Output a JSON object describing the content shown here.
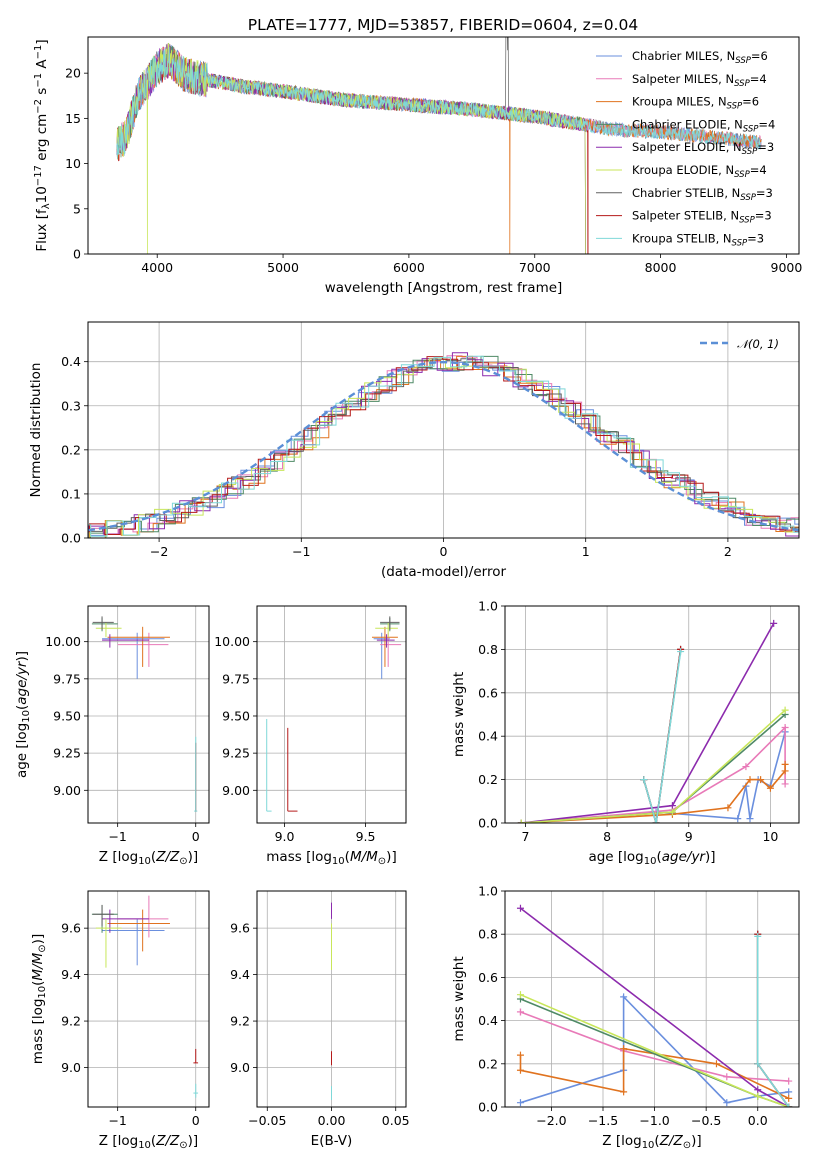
{
  "figure": {
    "title": "PLATE=1777, MJD=53857, FIBERID=0604, z=0.04"
  },
  "colors": {
    "Chabrier MILES": "#6a8fde",
    "Salpeter MILES": "#e87ab8",
    "Kroupa MILES": "#e0731f",
    "Chabrier ELODIE": "#4f8a66",
    "Salpeter ELODIE": "#8c2bad",
    "Kroupa ELODIE": "#c8e65a",
    "Chabrier STELIB": "#606060",
    "Salpeter STELIB": "#b51a1a",
    "Kroupa STELIB": "#7fd8d8"
  },
  "chart_data": [
    {
      "id": "spectrum",
      "type": "line",
      "xlabel": "wavelength [Angstrom, rest frame]",
      "ylabel": "Flux [f_λ 10^-17 erg cm^-2 s^-1 A^-1]",
      "xlim": [
        3450,
        9100
      ],
      "ylim": [
        0,
        24
      ],
      "xticks": [
        4000,
        5000,
        6000,
        7000,
        8000,
        9000
      ],
      "yticks": [
        0,
        5,
        10,
        15,
        20
      ],
      "legend_position": "top-right",
      "series": [
        {
          "name": "Chabrier MILES",
          "nssp": "6"
        },
        {
          "name": "Salpeter MILES",
          "nssp": "4"
        },
        {
          "name": "Kroupa MILES",
          "nssp": "6"
        },
        {
          "name": "Chabrier ELODIE",
          "nssp": "4"
        },
        {
          "name": "Salpeter ELODIE",
          "nssp": "3"
        },
        {
          "name": "Kroupa ELODIE",
          "nssp": "4"
        },
        {
          "name": "Chabrier STELIB",
          "nssp": "3"
        },
        {
          "name": "Salpeter STELIB",
          "nssp": "3"
        },
        {
          "name": "Kroupa STELIB",
          "nssp": "3"
        }
      ],
      "envelope": {
        "x": [
          3680,
          3750,
          3850,
          3950,
          4000,
          4100,
          4200,
          4300,
          4500,
          4700,
          5000,
          5500,
          6000,
          6500,
          7000,
          7400,
          7600,
          8000,
          8500,
          8800
        ],
        "y": [
          12.0,
          13.0,
          17.5,
          19.5,
          20.5,
          21.5,
          20.0,
          19.5,
          19.0,
          18.5,
          18.0,
          17.0,
          16.5,
          16.0,
          15.2,
          14.3,
          13.8,
          13.5,
          12.8,
          12.3
        ]
      }
    },
    {
      "id": "residuals",
      "type": "line",
      "xlabel": "(data-model)/error",
      "ylabel": "Normed distribution",
      "xlim": [
        -2.5,
        2.5
      ],
      "ylim": [
        0,
        0.49
      ],
      "xticks": [
        -2,
        -1,
        0,
        1,
        2
      ],
      "yticks": [
        0.0,
        0.1,
        0.2,
        0.3,
        0.4
      ],
      "legend": "𝒩(0, 1)",
      "legend_position": "top-right",
      "gaussian": {
        "mean": 0,
        "sigma": 1
      }
    },
    {
      "id": "age_vs_Z",
      "type": "scatter",
      "xlabel": "Z [log10(Z/Z⊙)]",
      "ylabel": "age [log10(age/yr)]",
      "xlim": [
        -1.38,
        0.17
      ],
      "ylim": [
        8.78,
        10.24
      ],
      "xticks": [
        -1,
        0
      ],
      "yticks": [
        9.0,
        9.25,
        9.5,
        9.75,
        10.0
      ],
      "points": [
        {
          "series": "Chabrier MILES",
          "x": -0.75,
          "y": 10.02,
          "xerr": [
            0.45,
            0.35
          ],
          "yerr": [
            0.27,
            0.04
          ]
        },
        {
          "series": "Salpeter MILES",
          "x": -0.6,
          "y": 9.98,
          "xerr": [
            0.4,
            0.25
          ],
          "yerr": [
            0.15,
            0.08
          ]
        },
        {
          "series": "Kroupa MILES",
          "x": -0.68,
          "y": 10.03,
          "xerr": [
            0.45,
            0.35
          ],
          "yerr": [
            0.2,
            0.07
          ]
        },
        {
          "series": "Chabrier ELODIE",
          "x": -1.2,
          "y": 10.12,
          "xerr": [
            0.13,
            0.2
          ],
          "yerr": [
            0.05,
            0.04
          ]
        },
        {
          "series": "Salpeter ELODIE",
          "x": -1.1,
          "y": 10.01,
          "xerr": [
            0.1,
            0.5
          ],
          "yerr": [
            0.05,
            0.04
          ]
        },
        {
          "series": "Kroupa ELODIE",
          "x": -1.15,
          "y": 10.09,
          "xerr": [
            0.13,
            0.2
          ],
          "yerr": [
            0.06,
            0.04
          ]
        },
        {
          "series": "Chabrier STELIB",
          "x": -1.2,
          "y": 10.13,
          "xerr": [
            0.12,
            0.15
          ],
          "yerr": [
            0.05,
            0.04
          ]
        },
        {
          "series": "Salpeter STELIB",
          "x": 0.0,
          "y": 8.86,
          "xerr": [
            0.01,
            0.01
          ],
          "yerr": [
            0.0,
            0.46
          ]
        },
        {
          "series": "Kroupa STELIB",
          "x": 0.0,
          "y": 8.86,
          "xerr": [
            0.02,
            0.02
          ],
          "yerr": [
            0.0,
            0.5
          ]
        }
      ]
    },
    {
      "id": "age_vs_mass",
      "type": "scatter",
      "xlabel": "mass [log10(M/M⊙)]",
      "ylabel": "",
      "xlim": [
        8.83,
        9.75
      ],
      "ylim": [
        8.78,
        10.24
      ],
      "xticks": [
        9.0,
        9.5
      ],
      "yticks": [
        9.0,
        9.25,
        9.5,
        9.75,
        10.0
      ],
      "points": [
        {
          "series": "Chabrier MILES",
          "x": 9.6,
          "y": 10.02,
          "xerr": [
            0.05,
            0.05
          ],
          "yerr": [
            0.27,
            0.04
          ]
        },
        {
          "series": "Salpeter MILES",
          "x": 9.64,
          "y": 9.98,
          "xerr": [
            0.05,
            0.08
          ],
          "yerr": [
            0.15,
            0.08
          ]
        },
        {
          "series": "Kroupa MILES",
          "x": 9.62,
          "y": 10.03,
          "xerr": [
            0.08,
            0.08
          ],
          "yerr": [
            0.2,
            0.07
          ]
        },
        {
          "series": "Chabrier ELODIE",
          "x": 9.65,
          "y": 10.12,
          "xerr": [
            0.06,
            0.06
          ],
          "yerr": [
            0.05,
            0.04
          ]
        },
        {
          "series": "Salpeter ELODIE",
          "x": 9.63,
          "y": 10.01,
          "xerr": [
            0.06,
            0.05
          ],
          "yerr": [
            0.05,
            0.04
          ]
        },
        {
          "series": "Kroupa ELODIE",
          "x": 9.64,
          "y": 10.09,
          "xerr": [
            0.08,
            0.06
          ],
          "yerr": [
            0.06,
            0.04
          ]
        },
        {
          "series": "Chabrier STELIB",
          "x": 9.65,
          "y": 10.13,
          "xerr": [
            0.06,
            0.06
          ],
          "yerr": [
            0.05,
            0.04
          ]
        },
        {
          "series": "Salpeter STELIB",
          "x": 9.02,
          "y": 8.86,
          "xerr": [
            0.0,
            0.06
          ],
          "yerr": [
            0.0,
            0.56
          ]
        },
        {
          "series": "Kroupa STELIB",
          "x": 8.89,
          "y": 8.86,
          "xerr": [
            0.0,
            0.03
          ],
          "yerr": [
            0.0,
            0.62
          ]
        }
      ]
    },
    {
      "id": "weight_vs_age",
      "type": "line",
      "xlabel": "age [log10(age/yr)]",
      "ylabel": "mass weight",
      "xlim": [
        6.75,
        10.35
      ],
      "ylim": [
        0,
        1
      ],
      "xticks": [
        7,
        8,
        9,
        10
      ],
      "yticks": [
        0.0,
        0.2,
        0.4,
        0.6,
        0.8,
        1.0
      ],
      "series": [
        {
          "series": "Chabrier MILES",
          "x": [
            6.95,
            8.6,
            9.6,
            9.7,
            9.75,
            9.85,
            10.0,
            10.18
          ],
          "y": [
            0.0,
            0.05,
            0.02,
            0.17,
            0.02,
            0.2,
            0.17,
            0.42
          ]
        },
        {
          "series": "Salpeter MILES",
          "x": [
            6.95,
            8.8,
            9.7,
            10.18,
            10.18
          ],
          "y": [
            0.0,
            0.06,
            0.26,
            0.44,
            0.18
          ]
        },
        {
          "series": "Kroupa MILES",
          "x": [
            6.95,
            8.8,
            9.48,
            9.75,
            9.88,
            10.0,
            10.18,
            10.18
          ],
          "y": [
            0.0,
            0.04,
            0.07,
            0.2,
            0.2,
            0.16,
            0.24,
            0.27
          ]
        },
        {
          "series": "Chabrier ELODIE",
          "x": [
            6.95,
            8.8,
            10.18
          ],
          "y": [
            0.0,
            0.05,
            0.5
          ]
        },
        {
          "series": "Salpeter ELODIE",
          "x": [
            6.95,
            8.8,
            10.04
          ],
          "y": [
            0.0,
            0.08,
            0.92
          ]
        },
        {
          "series": "Kroupa ELODIE",
          "x": [
            6.95,
            8.8,
            10.18
          ],
          "y": [
            0.0,
            0.05,
            0.52
          ]
        },
        {
          "series": "Chabrier STELIB",
          "x": [
            8.45,
            8.6,
            8.9
          ],
          "y": [
            0.2,
            0.0,
            0.8
          ]
        },
        {
          "series": "Salpeter STELIB",
          "x": [
            8.45,
            8.6,
            8.9
          ],
          "y": [
            0.2,
            0.0,
            0.8
          ]
        },
        {
          "series": "Kroupa STELIB",
          "x": [
            8.45,
            8.6,
            8.9
          ],
          "y": [
            0.2,
            0.0,
            0.79
          ]
        }
      ]
    },
    {
      "id": "mass_vs_Z",
      "type": "scatter",
      "xlabel": "Z [log10(Z/Z⊙)]",
      "ylabel": "mass [log10(M/M⊙)]",
      "xlim": [
        -1.38,
        0.17
      ],
      "ylim": [
        8.83,
        9.76
      ],
      "xticks": [
        -1,
        0
      ],
      "yticks": [
        9.0,
        9.2,
        9.4,
        9.6
      ],
      "points": [
        {
          "series": "Chabrier MILES",
          "x": -0.75,
          "y": 9.59,
          "xerr": [
            0.45,
            0.35
          ],
          "yerr": [
            0.15,
            0.05
          ]
        },
        {
          "series": "Salpeter MILES",
          "x": -0.6,
          "y": 9.64,
          "xerr": [
            0.4,
            0.25
          ],
          "yerr": [
            0.08,
            0.1
          ]
        },
        {
          "series": "Kroupa MILES",
          "x": -0.68,
          "y": 9.62,
          "xerr": [
            0.45,
            0.35
          ],
          "yerr": [
            0.12,
            0.06
          ]
        },
        {
          "series": "Chabrier ELODIE",
          "x": -1.2,
          "y": 9.66,
          "xerr": [
            0.13,
            0.2
          ],
          "yerr": [
            0.08,
            0.04
          ]
        },
        {
          "series": "Salpeter ELODIE",
          "x": -1.1,
          "y": 9.64,
          "xerr": [
            0.1,
            0.5
          ],
          "yerr": [
            0.06,
            0.04
          ]
        },
        {
          "series": "Kroupa ELODIE",
          "x": -1.15,
          "y": 9.6,
          "xerr": [
            0.13,
            0.2
          ],
          "yerr": [
            0.17,
            0.04
          ]
        },
        {
          "series": "Chabrier STELIB",
          "x": -1.2,
          "y": 9.66,
          "xerr": [
            0.12,
            0.15
          ],
          "yerr": [
            0.05,
            0.04
          ]
        },
        {
          "series": "Salpeter STELIB",
          "x": 0.0,
          "y": 9.02,
          "xerr": [
            0.03,
            0.03
          ],
          "yerr": [
            0.0,
            0.06
          ]
        },
        {
          "series": "Kroupa STELIB",
          "x": 0.0,
          "y": 8.89,
          "xerr": [
            0.03,
            0.03
          ],
          "yerr": [
            0.02,
            0.04
          ]
        }
      ]
    },
    {
      "id": "mass_vs_ebv",
      "type": "scatter",
      "xlabel": "E(B-V)",
      "ylabel": "",
      "xlim": [
        -0.058,
        0.058
      ],
      "ylim": [
        8.83,
        9.76
      ],
      "xticks": [
        -0.05,
        0.0,
        0.05
      ],
      "yticks": [
        9.0,
        9.2,
        9.4,
        9.6
      ],
      "points": [
        {
          "series": "Kroupa ELODIE",
          "x": 0.0,
          "y": 9.56,
          "yerr": [
            0.14,
            0.06
          ]
        },
        {
          "series": "Salpeter ELODIE",
          "x": 0.0,
          "y": 9.68,
          "yerr": [
            0.04,
            0.03
          ]
        },
        {
          "series": "Salpeter STELIB",
          "x": 0.0,
          "y": 9.03,
          "yerr": [
            0.02,
            0.04
          ]
        },
        {
          "series": "Kroupa STELIB",
          "x": 0.0,
          "y": 8.89,
          "yerr": [
            0.03,
            0.03
          ]
        }
      ]
    },
    {
      "id": "weight_vs_Z",
      "type": "line",
      "xlabel": "Z [log10(Z/Z⊙)]",
      "ylabel": "mass weight",
      "xlim": [
        -2.45,
        0.4
      ],
      "ylim": [
        0,
        1
      ],
      "xticks": [
        -2.0,
        -1.5,
        -1.0,
        -0.5,
        0.0
      ],
      "yticks": [
        0.0,
        0.2,
        0.4,
        0.6,
        0.8,
        1.0
      ],
      "series": [
        {
          "series": "Chabrier MILES",
          "x": [
            -2.3,
            -1.3,
            -1.3,
            -0.3,
            0.0,
            0.3
          ],
          "y": [
            0.02,
            0.17,
            0.51,
            0.02,
            0.05,
            0.07
          ]
        },
        {
          "series": "Salpeter MILES",
          "x": [
            -2.3,
            -2.3,
            -1.3,
            -0.3,
            0.3
          ],
          "y": [
            0.44,
            0.44,
            0.26,
            0.14,
            0.12
          ]
        },
        {
          "series": "Kroupa MILES",
          "x": [
            -2.3,
            -2.3,
            -1.3,
            -1.3,
            -0.4,
            0.3
          ],
          "y": [
            0.24,
            0.17,
            0.07,
            0.27,
            0.2,
            0.04
          ]
        },
        {
          "series": "Chabrier ELODIE",
          "x": [
            -2.3,
            0.0,
            0.3
          ],
          "y": [
            0.5,
            0.05,
            0.0
          ]
        },
        {
          "series": "Salpeter ELODIE",
          "x": [
            -2.3,
            0.0,
            0.3
          ],
          "y": [
            0.92,
            0.08,
            0.0
          ]
        },
        {
          "series": "Kroupa ELODIE",
          "x": [
            -2.3,
            0.0,
            0.3
          ],
          "y": [
            0.52,
            0.05,
            0.0
          ]
        },
        {
          "series": "Chabrier STELIB",
          "x": [
            0.0,
            0.0,
            0.3
          ],
          "y": [
            0.8,
            0.2,
            0.0
          ]
        },
        {
          "series": "Salpeter STELIB",
          "x": [
            0.0,
            0.0,
            0.3
          ],
          "y": [
            0.8,
            0.2,
            0.0
          ]
        },
        {
          "series": "Kroupa STELIB",
          "x": [
            0.0,
            0.0,
            0.3
          ],
          "y": [
            0.79,
            0.2,
            0.0
          ]
        }
      ]
    }
  ]
}
